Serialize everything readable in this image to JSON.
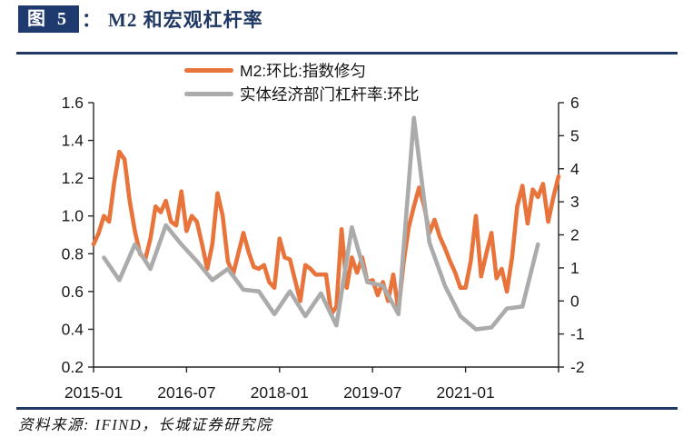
{
  "header": {
    "figure_label": "图 5",
    "colon": "：",
    "title": "M2 和宏观杠杆率"
  },
  "legend": [
    {
      "label": "M2:环比:指数修匀",
      "color": "#e8743b"
    },
    {
      "label": "实体经济部门杠杆率:环比",
      "color": "#ababab"
    }
  ],
  "chart_data": {
    "type": "line",
    "title": "M2 和宏观杠杆率",
    "x_tick_labels": [
      "2015-01",
      "2016-07",
      "2018-01",
      "2019-07",
      "2021-01"
    ],
    "x_range": {
      "start": "2015-01",
      "end": "2022-07"
    },
    "left_axis": {
      "min": 0.2,
      "max": 1.6,
      "step": 0.2,
      "ticks": [
        "1.6",
        "1.4",
        "1.2",
        "1.0",
        "0.8",
        "0.6",
        "0.4",
        "0.2"
      ]
    },
    "right_axis": {
      "min": -2,
      "max": 6,
      "step": 1,
      "ticks": [
        "6",
        "5",
        "4",
        "3",
        "2",
        "1",
        "0",
        "-1",
        "-2"
      ]
    },
    "grid": false,
    "legend_position": "top",
    "series": [
      {
        "name": "M2:环比:指数修匀",
        "color": "#e8743b",
        "axis": "left",
        "freq": "monthly",
        "start": "2015-01",
        "values": [
          0.85,
          0.91,
          1.0,
          0.97,
          1.18,
          1.34,
          1.3,
          1.08,
          0.92,
          0.8,
          0.77,
          0.88,
          1.05,
          1.02,
          1.08,
          0.97,
          0.95,
          1.13,
          0.92,
          1.0,
          0.97,
          0.85,
          0.72,
          0.85,
          1.12,
          1.0,
          0.76,
          0.69,
          0.8,
          0.91,
          0.81,
          0.73,
          0.72,
          0.74,
          0.65,
          0.62,
          0.88,
          0.78,
          0.77,
          0.66,
          0.55,
          0.74,
          0.72,
          0.69,
          0.69,
          0.69,
          0.48,
          0.52,
          0.93,
          0.62,
          0.78,
          0.7,
          0.78,
          0.65,
          0.66,
          0.58,
          0.65,
          0.55,
          0.69,
          0.5,
          0.75,
          0.94,
          1.05,
          1.15,
          1.05,
          0.91,
          0.98,
          0.89,
          0.83,
          0.76,
          0.7,
          0.62,
          0.62,
          0.76,
          1.0,
          0.68,
          0.8,
          0.91,
          0.67,
          0.72,
          0.6,
          0.78,
          1.05,
          1.16,
          0.96,
          1.14,
          1.1,
          1.17,
          0.97,
          1.1,
          1.21
        ]
      },
      {
        "name": "实体经济部门杠杆率:环比",
        "color": "#ababab",
        "axis": "right",
        "freq": "quarterly",
        "start": "2015-03",
        "values": [
          1.31,
          0.63,
          1.71,
          0.97,
          2.29,
          1.71,
          1.2,
          0.63,
          0.97,
          0.34,
          0.29,
          -0.4,
          0.29,
          -0.46,
          0.23,
          -0.74,
          2.23,
          0.57,
          0.46,
          -0.4,
          5.54,
          1.77,
          0.46,
          -0.46,
          -0.86,
          -0.8,
          -0.23,
          -0.17,
          1.71
        ]
      }
    ]
  },
  "source": {
    "text": "资料来源: IFIND，长城证券研究院"
  },
  "colors": {
    "accent_navy": "#1f3864",
    "badge_bg": "#1e3a6e",
    "axis": "#262626",
    "m2_orange": "#e8743b",
    "leverage_gray": "#ababab"
  }
}
